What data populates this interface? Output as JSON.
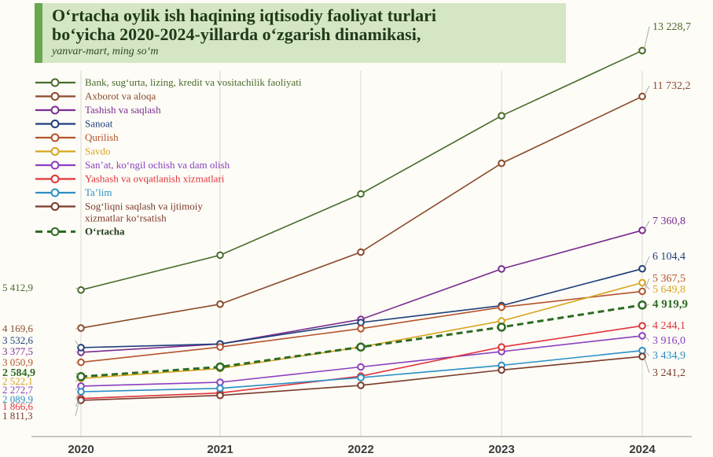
{
  "chart_data": {
    "type": "line",
    "title_line1": "O‘rtacha oylik ish haqining iqtisodiy faoliyat turlari",
    "title_line2": "bo‘yicha 2020-2024-yillarda o‘zgarish dinamikasi,",
    "subtitle": "yanvar-mart, ming so‘m",
    "categories": [
      "2020",
      "2021",
      "2022",
      "2023",
      "2024"
    ],
    "ylim": [
      1500,
      13700
    ],
    "grid": false,
    "legend_position": "top-left",
    "series": [
      {
        "name": "Bank, sug‘urta, lizing, kredit va vositachilik faoliyati",
        "color": "#4a6b2a",
        "values": [
          5412.9,
          6550,
          8550,
          11100,
          13228.7
        ],
        "start_label": "5 412,9",
        "end_label": "13 228,7"
      },
      {
        "name": "Axborot va aloqa",
        "color": "#8b4a2b",
        "values": [
          4169.6,
          4950,
          6650,
          9550,
          11732.2
        ],
        "start_label": "4 169,6",
        "end_label": "11 732,2"
      },
      {
        "name": "Tashish va saqlash",
        "color": "#7b2d8e",
        "values": [
          3377.5,
          3650,
          4450,
          6100,
          7360.8
        ],
        "start_label": "3 377,5",
        "end_label": "7 360,8"
      },
      {
        "name": "Sanoat",
        "color": "#1f3e7a",
        "values": [
          3532.6,
          3650,
          4350,
          4900,
          6104.4
        ],
        "start_label": "3 532,6",
        "end_label": "6 104,4"
      },
      {
        "name": "Qurilish",
        "color": "#b5532b",
        "values": [
          3050.9,
          3550,
          4150,
          4850,
          5367.5
        ],
        "start_label": "3 050,9",
        "end_label": "5 367,5"
      },
      {
        "name": "Savdo",
        "color": "#d9a520",
        "values": [
          2522.1,
          2850,
          3550,
          4400,
          5649.8
        ],
        "start_label": "2 522,1",
        "end_label": "5 649,8"
      },
      {
        "name": "San’at, ko‘ngil ochish va dam olish",
        "color": "#8a3fc0",
        "values": [
          2272.7,
          2400,
          2900,
          3400,
          3916.0
        ],
        "start_label": "2 272,7",
        "end_label": "3 916,0"
      },
      {
        "name": "Yashash va ovqatlanish xizmatlari",
        "color": "#e0343a",
        "values": [
          1866.6,
          2050,
          2600,
          3550,
          4244.1
        ],
        "start_label": "1 866,6",
        "end_label": "4 244,1"
      },
      {
        "name": "Ta’lim",
        "color": "#2b8fc6",
        "values": [
          2089.9,
          2200,
          2550,
          2950,
          3434.9
        ],
        "start_label": "2 089,9",
        "end_label": "3 434,9"
      },
      {
        "name": "Sog‘liqni saqlash va ijtimoiy xizmatlar ko‘rsatish",
        "name_lines": [
          "Sog‘liqni saqlash va ijtimoiy",
          "xizmatlar ko‘rsatish"
        ],
        "color": "#7a3a2a",
        "values": [
          1811.3,
          1970,
          2300,
          2800,
          3241.2
        ],
        "start_label": "1 811,3",
        "end_label": "3 241,2"
      },
      {
        "name": "O‘rtacha",
        "color": "#2e6b23",
        "values": [
          2584.9,
          2900,
          3550,
          4200,
          4919.9
        ],
        "start_label": "2 584,9",
        "end_label": "4 919,9",
        "dashed": true,
        "bold": true
      }
    ]
  }
}
